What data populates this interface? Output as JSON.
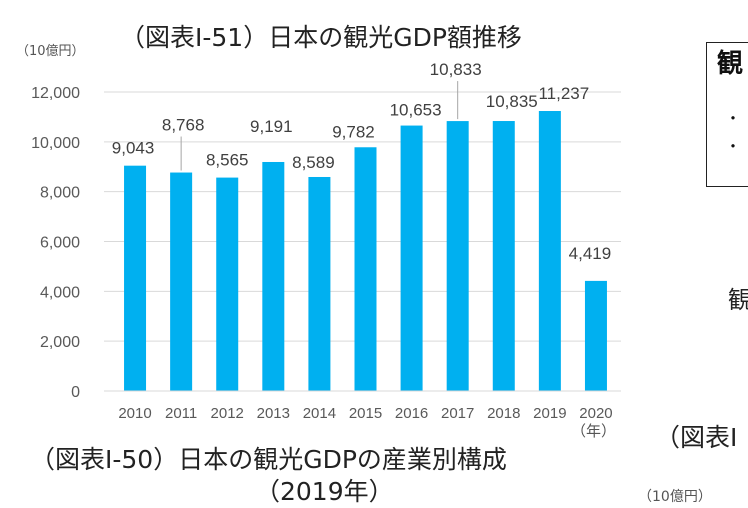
{
  "chart_data": {
    "type": "bar",
    "title": "（図表Ⅰ-51）日本の観光GDP額推移",
    "ylabel": "（10億円）",
    "xlabel": "（年）",
    "categories": [
      "2010",
      "2011",
      "2012",
      "2013",
      "2014",
      "2015",
      "2016",
      "2017",
      "2018",
      "2019",
      "2020"
    ],
    "values": [
      9043,
      8768,
      8565,
      9191,
      8589,
      9782,
      10653,
      10833,
      10835,
      11237,
      4419
    ],
    "data_labels": [
      "9,043",
      "8,768",
      "8,565",
      "9,191",
      "8,589",
      "9,782",
      "10,653",
      "10,833",
      "10,835",
      "11,237",
      "4,419"
    ],
    "yticks": [
      "0",
      "2,000",
      "4,000",
      "6,000",
      "8,000",
      "10,000",
      "12,000"
    ],
    "ylim": [
      0,
      12000
    ],
    "grid": true,
    "bar_color": "#00B0F0"
  },
  "next_figure": {
    "title": "（図表Ⅰ-50）日本の観光GDPの産業別構成",
    "subtitle": "（2019年）",
    "unit": "（10億円）"
  },
  "right_column": {
    "figure_title": "（図表Ⅰ",
    "box_heading": "観",
    "bullets": [
      "・",
      "・"
    ],
    "text_fragment": "観"
  }
}
